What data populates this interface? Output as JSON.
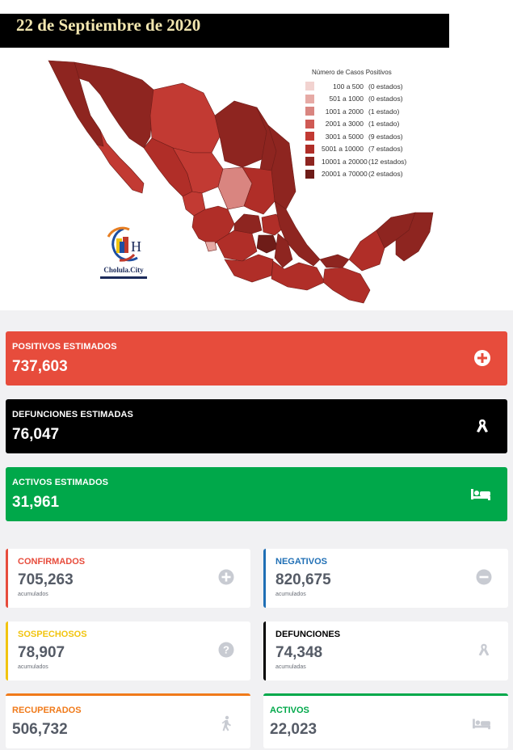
{
  "header": {
    "date": "22 de Septiembre de 2020"
  },
  "legend": {
    "title": "Número de Casos Positivos",
    "items": [
      {
        "range": "100 a 500",
        "count": "(0 estados)",
        "color": "#f2d3d0"
      },
      {
        "range": "501 a 1000",
        "count": "(0 estados)",
        "color": "#e6aaa5"
      },
      {
        "range": "1001 a 2000",
        "count": "(1 estado)",
        "color": "#d98580"
      },
      {
        "range": "2001 a 3000",
        "count": "(1 estado)",
        "color": "#cf5a54"
      },
      {
        "range": "3001 a 5000",
        "count": "(9 estados)",
        "color": "#c23a33"
      },
      {
        "range": "5001 a 10000",
        "count": "(7 estados)",
        "color": "#b02e28"
      },
      {
        "range": "10001 a 20000",
        "count": "(12 estados)",
        "color": "#8e2520"
      },
      {
        "range": "20001 a 70000",
        "count": "(2 estados)",
        "color": "#6e1c18"
      }
    ]
  },
  "logo": {
    "text": "Cholula.City"
  },
  "estimates": [
    {
      "label": "POSITIVOS ESTIMADOS",
      "value": "737,603",
      "color": "#e74c3c",
      "icon": "plus-circle-icon"
    },
    {
      "label": "DEFUNCIONES ESTIMADAS",
      "value": "76,047",
      "color": "#000000",
      "icon": "ribbon-icon"
    },
    {
      "label": "ACTIVOS ESTIMADOS",
      "value": "31,961",
      "color": "#00a84a",
      "icon": "bed-icon"
    }
  ],
  "cards": {
    "confirmados": {
      "label": "CONFIRMADOS",
      "value": "705,263",
      "sub": "acumulados",
      "color": "#e74c3c",
      "icon": "plus-circle-icon"
    },
    "negativos": {
      "label": "NEGATIVOS",
      "value": "820,675",
      "sub": "acumulados",
      "color": "#1f6fb5",
      "icon": "minus-circle-icon"
    },
    "sospechosos": {
      "label": "SOSPECHOSOS",
      "value": "78,907",
      "sub": "acumulados",
      "color": "#f1c40f",
      "icon": "question-circle-icon"
    },
    "defunciones": {
      "label": "DEFUNCIONES",
      "value": "74,348",
      "sub": "acumuladas",
      "color": "#000000",
      "icon": "ribbon-icon"
    },
    "recuperados": {
      "label": "RECUPERADOS",
      "value": "506,732",
      "color": "#f07a1a",
      "icon": "walking-icon"
    },
    "activos": {
      "label": "ACTIVOS",
      "value": "22,023",
      "color": "#00a84a",
      "icon": "bed-icon"
    }
  }
}
